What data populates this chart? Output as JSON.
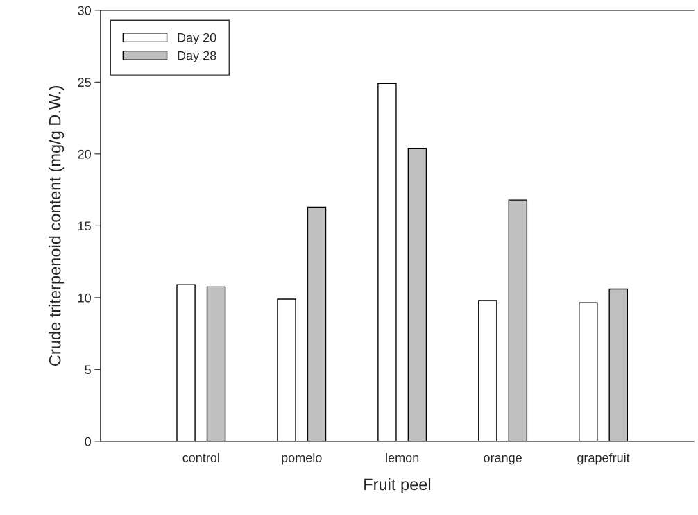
{
  "chart_data": {
    "type": "bar",
    "xlabel": "Fruit peel",
    "ylabel": "Crude triterpenoid content (mg/g D.W.)",
    "categories": [
      "control",
      "pomelo",
      "lemon",
      "orange",
      "grapefruit"
    ],
    "series": [
      {
        "name": "Day 20",
        "color": "#ffffff",
        "values": [
          10.9,
          9.9,
          24.9,
          9.8,
          9.65
        ]
      },
      {
        "name": "Day 28",
        "color": "#c0c0c0",
        "values": [
          10.75,
          16.3,
          20.4,
          16.8,
          10.6
        ]
      }
    ],
    "ylim": [
      0,
      30
    ],
    "yticks": [
      0,
      5,
      10,
      15,
      20,
      25,
      30
    ],
    "grid": false,
    "legend": "top left"
  }
}
